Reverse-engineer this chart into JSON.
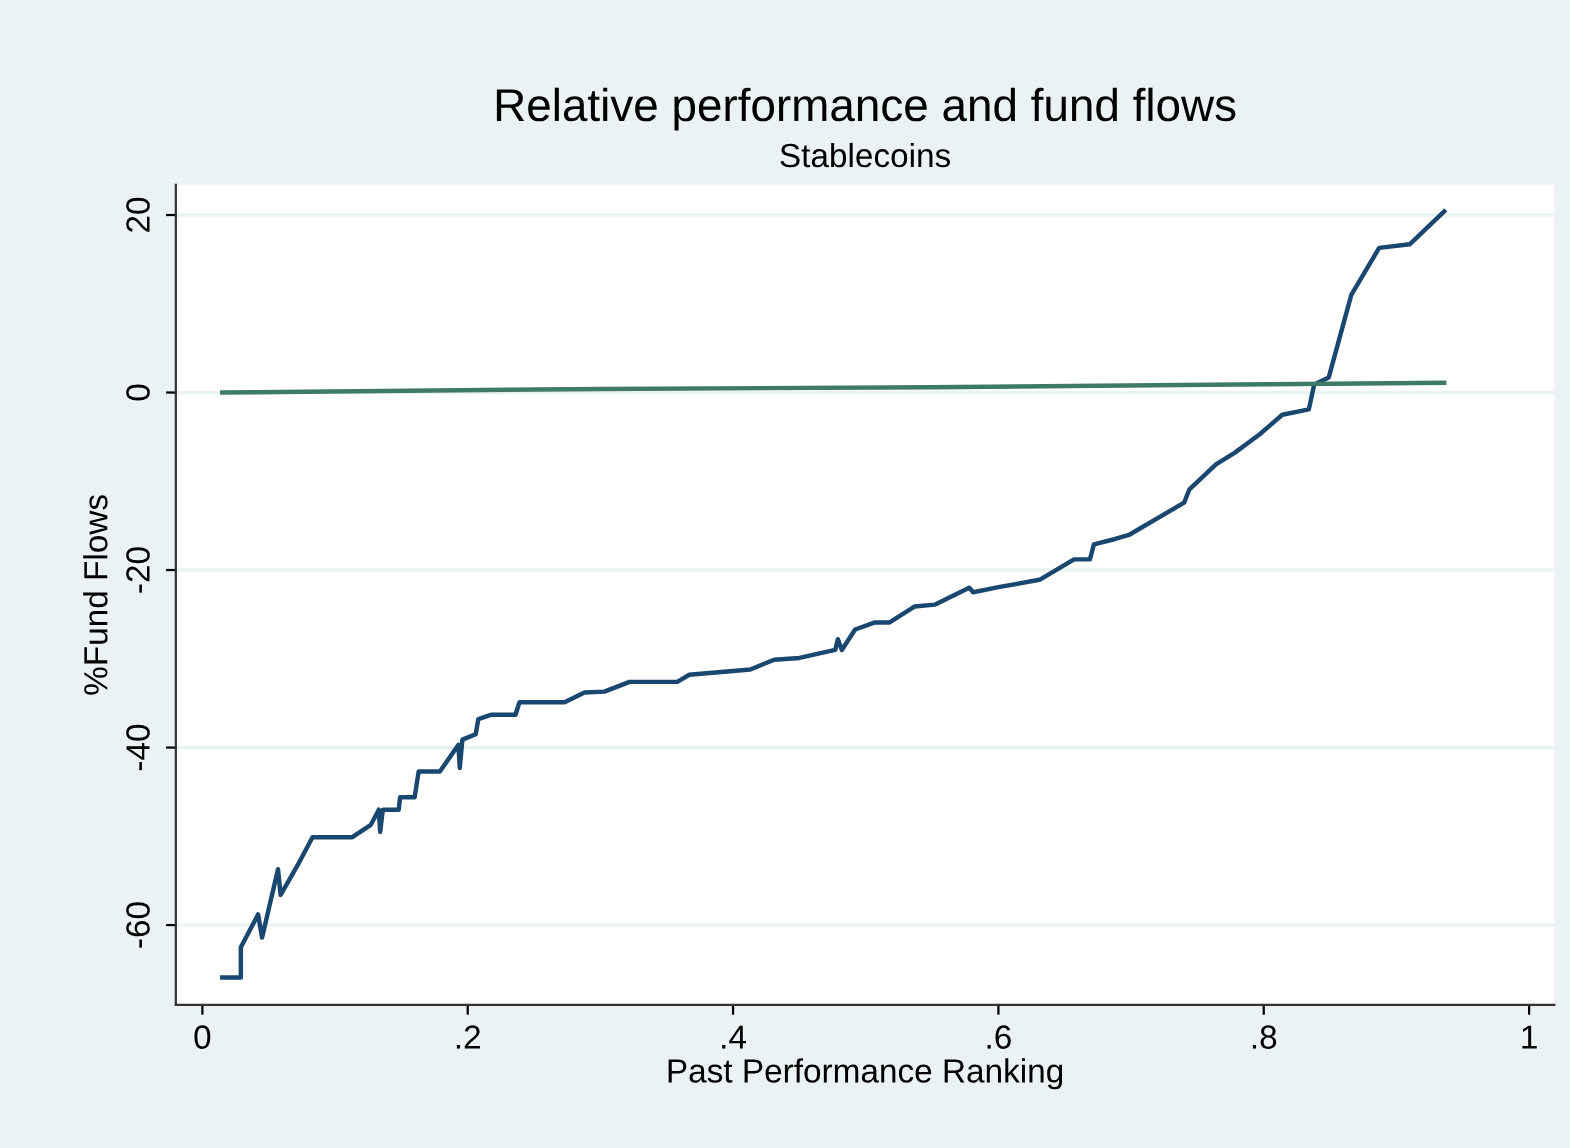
{
  "chart_data": {
    "type": "line",
    "title": "Relative performance and fund flows",
    "subtitle": "Stablecoins",
    "xlabel": "Past Performance Ranking",
    "ylabel": "%Fund Flows",
    "xlim": [
      -0.02,
      1.019
    ],
    "ylim": [
      -69,
      23.4
    ],
    "xticks": [
      0,
      {
        "value": 0.2,
        "label": ".2"
      },
      {
        "value": 0.4,
        "label": ".4"
      },
      {
        "value": 0.6,
        "label": ".6"
      },
      {
        "value": 0.8,
        "label": ".8"
      },
      1
    ],
    "yticks": [
      -60,
      -40,
      -20,
      0,
      20
    ],
    "grid": "y",
    "marker": "none",
    "line_style": "solid",
    "series": [
      {
        "color": "#1a476f",
        "x": [
          0.015,
          0.029,
          0.029,
          0.042,
          0.045,
          0.057,
          0.059,
          0.072,
          0.083,
          0.113,
          0.127,
          0.133,
          0.134,
          0.136,
          0.148,
          0.149,
          0.16,
          0.163,
          0.179,
          0.193,
          0.194,
          0.196,
          0.206,
          0.208,
          0.218,
          0.236,
          0.239,
          0.273,
          0.288,
          0.303,
          0.322,
          0.358,
          0.367,
          0.413,
          0.431,
          0.45,
          0.477,
          0.479,
          0.482,
          0.492,
          0.507,
          0.518,
          0.537,
          0.552,
          0.578,
          0.581,
          0.601,
          0.631,
          0.657,
          0.669,
          0.672,
          0.688,
          0.699,
          0.74,
          0.744,
          0.764,
          0.778,
          0.797,
          0.814,
          0.834,
          0.838,
          0.849,
          0.866,
          0.887,
          0.91,
          0.936
        ],
        "values": [
          -65.9,
          -65.9,
          -62.5,
          -58.8,
          -61.4,
          -53.7,
          -56.6,
          -53.2,
          -50.1,
          -50.1,
          -48.7,
          -47.0,
          -49.5,
          -47.0,
          -47.0,
          -45.6,
          -45.6,
          -42.7,
          -42.7,
          -39.7,
          -42.3,
          -39.1,
          -38.5,
          -36.8,
          -36.3,
          -36.3,
          -34.9,
          -34.9,
          -33.8,
          -33.7,
          -32.6,
          -32.6,
          -31.8,
          -31.2,
          -30.1,
          -29.9,
          -29.0,
          -27.8,
          -29.0,
          -26.7,
          -25.9,
          -25.9,
          -24.1,
          -23.9,
          -22.0,
          -22.5,
          -21.9,
          -21.1,
          -18.8,
          -18.8,
          -17.1,
          -16.5,
          -16.0,
          -12.4,
          -10.9,
          -8.1,
          -6.8,
          -4.7,
          -2.5,
          -1.9,
          0.9,
          1.7,
          11.0,
          16.3,
          16.7,
          20.4
        ]
      },
      {
        "color": "#3e7a68",
        "x": [
          0.015,
          0.3,
          0.55,
          0.78,
          0.936
        ],
        "values": [
          0.0,
          0.4,
          0.6,
          0.9,
          1.1
        ]
      }
    ]
  }
}
